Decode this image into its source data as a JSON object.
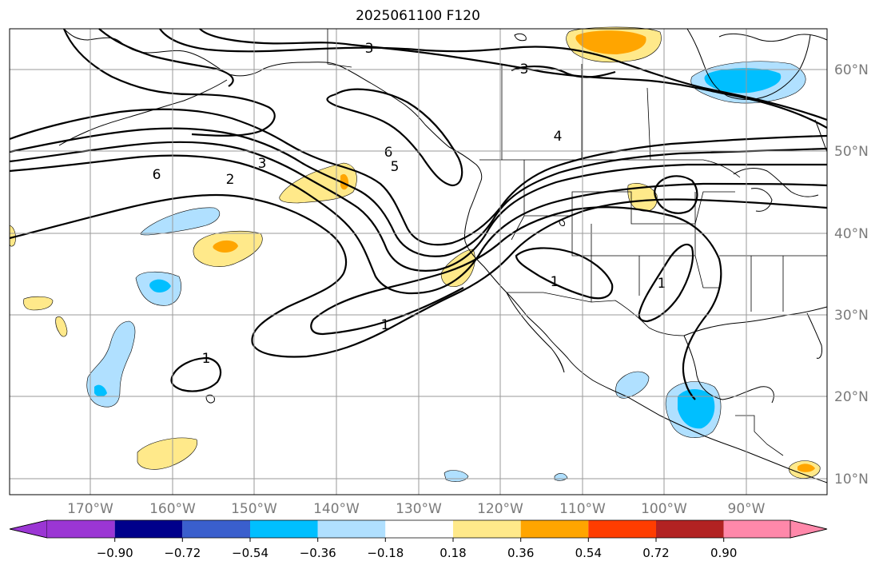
{
  "title": "2025061100 F120",
  "lon_labels": [
    "170°W",
    "160°W",
    "150°W",
    "140°W",
    "130°W",
    "120°W",
    "110°W",
    "100°W",
    "90°W"
  ],
  "lat_labels": [
    "60°N",
    "50°N",
    "40°N",
    "30°N",
    "20°N",
    "10°N"
  ],
  "colorbar": {
    "ticks": [
      "−0.90",
      "−0.72",
      "−0.54",
      "−0.36",
      "−0.18",
      "0.18",
      "0.36",
      "0.54",
      "0.72",
      "0.90"
    ],
    "colors": [
      "#9b36d4",
      "#00008b",
      "#3a5fcd",
      "#00bfff",
      "#b0e0ff",
      "#ffffff",
      "#ffe98a",
      "#ffa500",
      "#ff3d00",
      "#b22222",
      "#ff88aa"
    ]
  },
  "contour_labels": [
    "3",
    "3",
    "6",
    "5",
    "4",
    "6",
    "2",
    "3",
    "1",
    "1",
    "1",
    "1"
  ],
  "shading_colors": {
    "light_pos": "#ffe98a",
    "mid_pos": "#ffa500",
    "light_neg": "#b0e0ff",
    "mid_neg": "#00bfff"
  }
}
